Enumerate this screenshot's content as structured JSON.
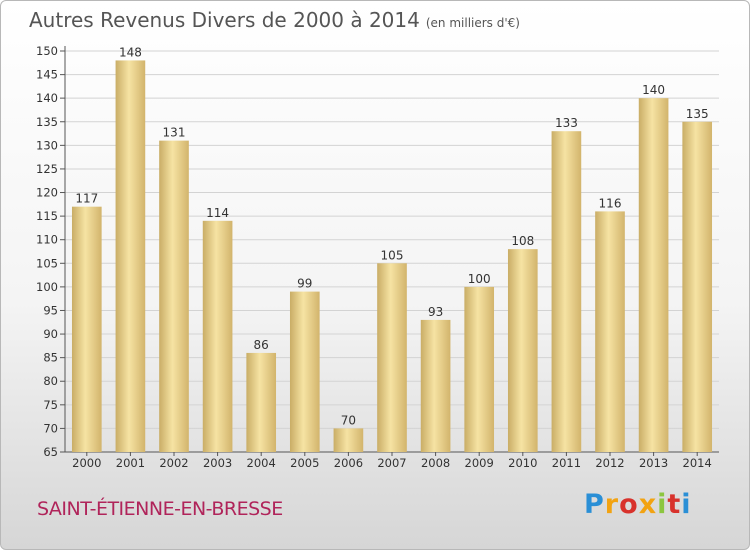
{
  "title": {
    "main": "Autres Revenus Divers de 2000 à 2014",
    "unit": "(en milliers d'€)"
  },
  "location": "SAINT-ÉTIENNE-EN-BRESSE",
  "brand": "Proxiti",
  "colors": {
    "bar_light": "#f6e3a3",
    "bar_dark": "#c9ad66",
    "grid": "#d3d3d3",
    "city_text": "#b0245a"
  },
  "chart_data": {
    "type": "bar",
    "title": "Autres Revenus Divers de 2000 à 2014",
    "categories": [
      "2000",
      "2001",
      "2002",
      "2003",
      "2004",
      "2005",
      "2006",
      "2007",
      "2008",
      "2009",
      "2010",
      "2011",
      "2012",
      "2013",
      "2014"
    ],
    "values": [
      117,
      148,
      131,
      114,
      86,
      99,
      70,
      105,
      93,
      100,
      108,
      133,
      116,
      140,
      135
    ],
    "ylim": [
      65,
      150
    ],
    "yticks": [
      65,
      70,
      75,
      80,
      85,
      90,
      95,
      100,
      105,
      110,
      115,
      120,
      125,
      130,
      135,
      140,
      145,
      150
    ],
    "grid": true,
    "data_labels": true,
    "legend": "none"
  }
}
